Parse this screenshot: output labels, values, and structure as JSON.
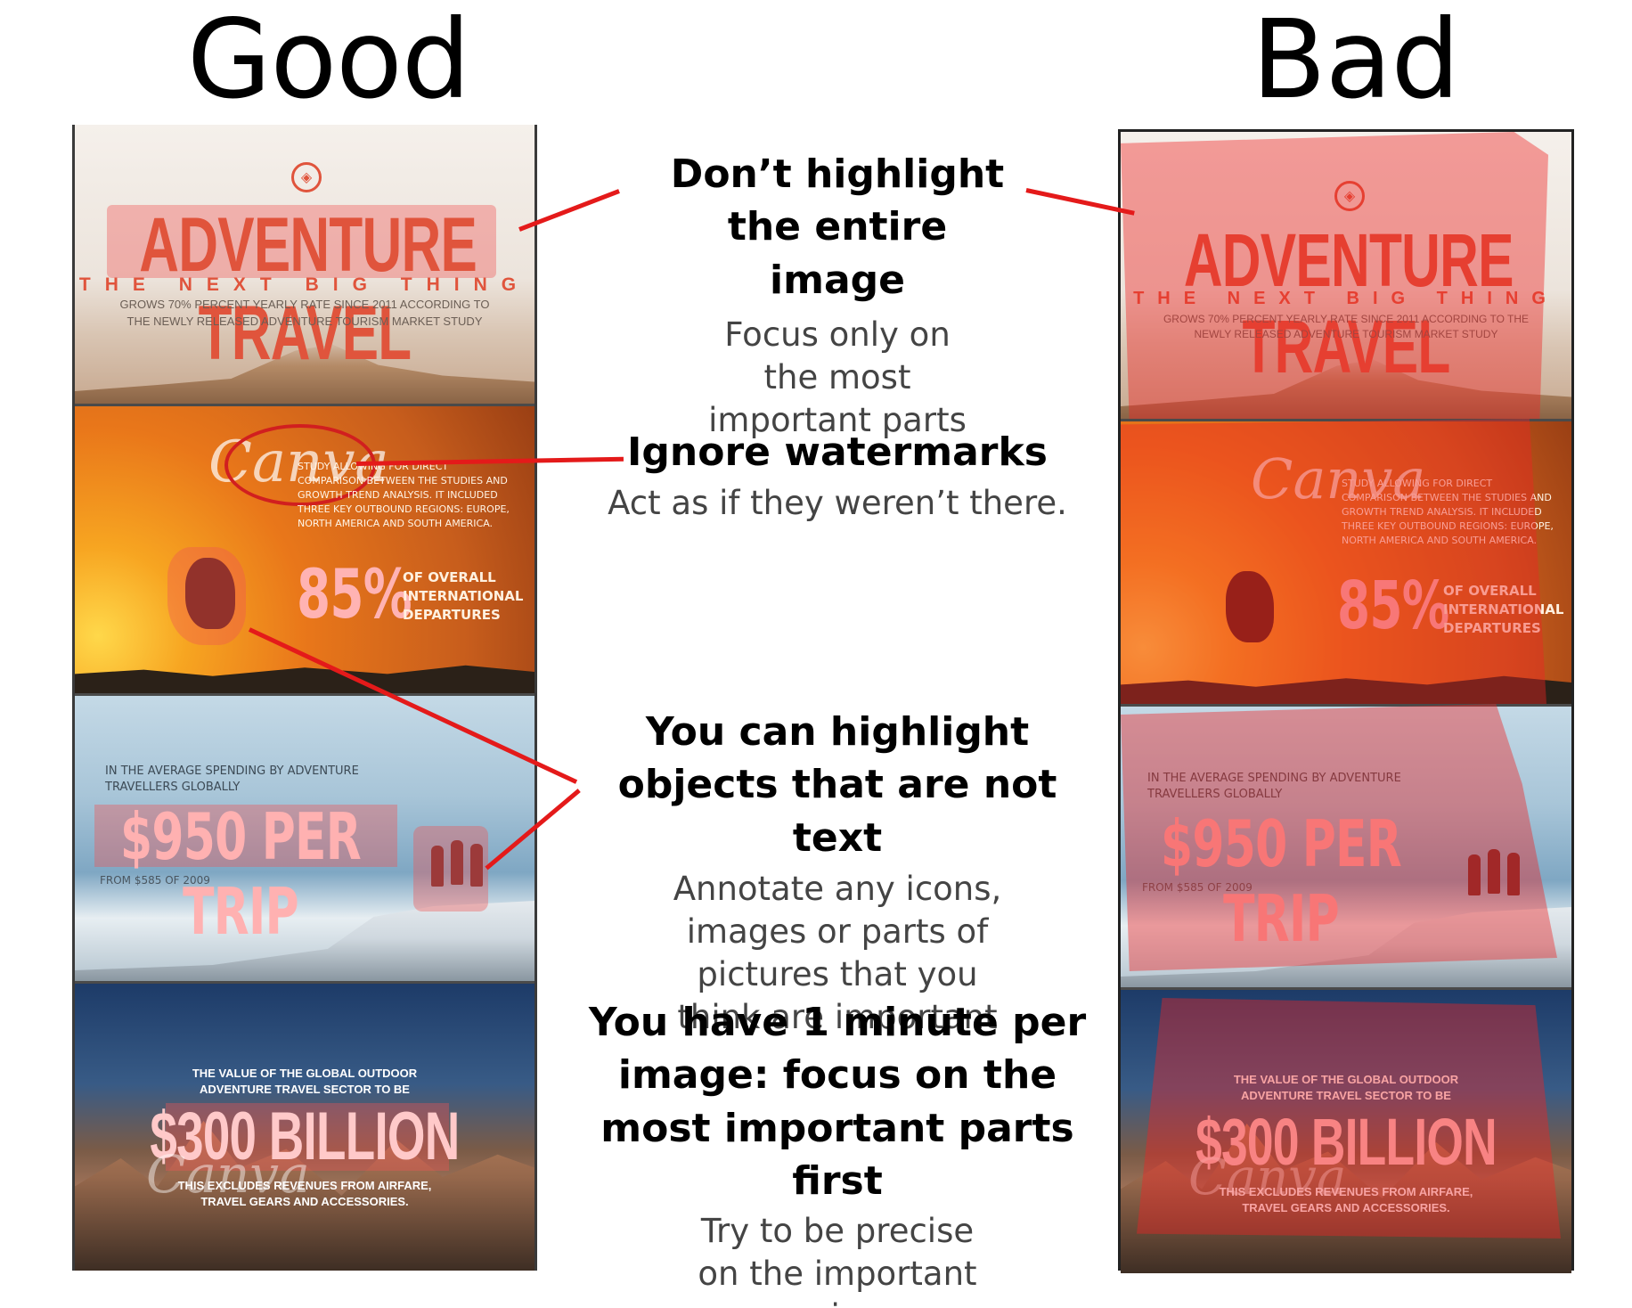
{
  "headings": {
    "good": "Good",
    "bad": "Bad"
  },
  "infographic": {
    "panel1": {
      "title": "ADVENTURE TRAVEL",
      "subtitle": "THE NEXT BIG THING",
      "body": "GROWS 70% PERCENT YEARLY RATE SINCE 2011 ACCORDING TO THE NEWLY RELEASED ADVENTURE TOURISM MARKET STUDY"
    },
    "panel2": {
      "watermark": "Canva",
      "body": "STUDY ALLOWING FOR DIRECT COMPARISON BETWEEN THE STUDIES AND GROWTH TREND ANALYSIS. IT INCLUDED THREE KEY OUTBOUND REGIONS: EUROPE, NORTH AMERICA AND SOUTH AMERICA.",
      "stat": "85%",
      "stat_label_1": "OF OVERALL",
      "stat_label_2": "INTERNATIONAL",
      "stat_label_3": "DEPARTURES"
    },
    "panel3": {
      "intro": "IN THE AVERAGE SPENDING BY ADVENTURE TRAVELLERS GLOBALLY",
      "stat": "$950 PER TRIP",
      "footnote": "FROM $585 OF 2009"
    },
    "panel4": {
      "intro": "THE VALUE OF THE GLOBAL OUTDOOR ADVENTURE TRAVEL SECTOR TO BE",
      "stat": "$300 BILLION",
      "watermark": "Canva",
      "footnote": "THIS EXCLUDES REVENUES FROM AIRFARE, TRAVEL GEARS AND ACCESSORIES."
    }
  },
  "annotations": [
    {
      "title": "Don’t highlight the entire image",
      "subtitle": "Focus only on the most important parts"
    },
    {
      "title": "Ignore watermarks",
      "subtitle": "Act as if they weren’t there."
    },
    {
      "title": "You can highlight objects that are not text",
      "subtitle": "Annotate any icons, images or parts of pictures that you think are important"
    },
    {
      "title": "You have 1 minute per image: focus on the most important parts first",
      "subtitle": "Try to be precise on the important regions"
    }
  ],
  "colors": {
    "connector": "#e41a1a",
    "highlight": "#f05555",
    "headline": "#e0543c"
  },
  "icons": [
    "compass-icon"
  ]
}
